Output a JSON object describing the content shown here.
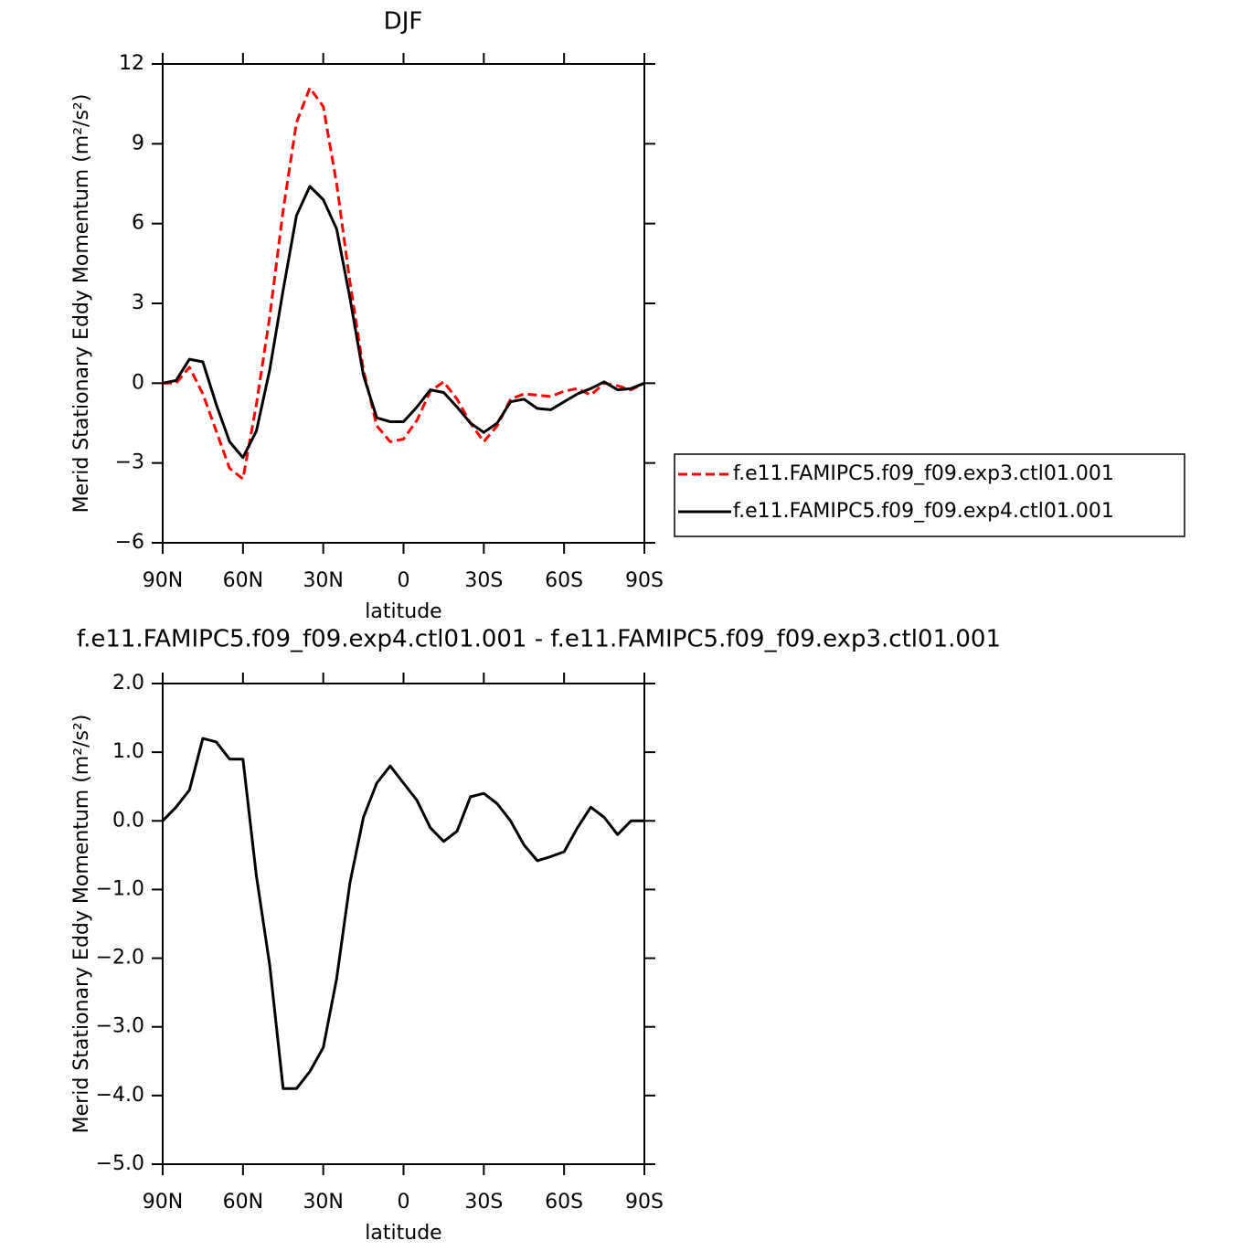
{
  "chart_data": [
    {
      "type": "line",
      "title": "DJF",
      "xlabel": "latitude",
      "ylabel": "Merid Stationary Eddy Momentum (m²/s²)",
      "x": [
        90,
        85,
        80,
        75,
        70,
        65,
        60,
        55,
        50,
        45,
        40,
        35,
        30,
        25,
        20,
        15,
        10,
        5,
        0,
        -5,
        -10,
        -15,
        -20,
        -25,
        -30,
        -35,
        -40,
        -45,
        -50,
        -55,
        -60,
        -65,
        -70,
        -75,
        -80,
        -85,
        -90
      ],
      "xlim": [
        90,
        -90
      ],
      "xticks": [
        {
          "value": 90,
          "label": "90N"
        },
        {
          "value": 60,
          "label": "60N"
        },
        {
          "value": 30,
          "label": "30N"
        },
        0,
        {
          "value": -30,
          "label": "30S"
        },
        {
          "value": -60,
          "label": "60S"
        },
        {
          "value": -90,
          "label": "90S"
        }
      ],
      "ylim": [
        -6,
        12
      ],
      "yticks": [
        {
          "value": -6,
          "label": "−6"
        },
        {
          "value": -3,
          "label": "−3"
        },
        0,
        3,
        6,
        9,
        12
      ],
      "legend": "right",
      "series": [
        {
          "name": "f.e11.FAMIPC5.f09_f09.exp3.ctl01.001",
          "color": "#ff0000",
          "dash": true,
          "values": [
            0,
            0,
            0.6,
            -0.4,
            -1.8,
            -3.2,
            -3.6,
            -0.8,
            2.5,
            6.5,
            9.8,
            11.1,
            10.4,
            7.5,
            3.8,
            0.5,
            -1.6,
            -2.2,
            -2.1,
            -1.4,
            -0.3,
            0.05,
            -0.6,
            -1.5,
            -2.2,
            -1.6,
            -0.6,
            -0.4,
            -0.45,
            -0.5,
            -0.3,
            -0.2,
            -0.45,
            0,
            -0.1,
            -0.25,
            0
          ]
        },
        {
          "name": "f.e11.FAMIPC5.f09_f09.exp4.ctl01.001",
          "color": "#000000",
          "dash": false,
          "values": [
            0,
            0.1,
            0.9,
            0.8,
            -0.8,
            -2.2,
            -2.8,
            -1.8,
            0.5,
            3.5,
            6.3,
            7.4,
            6.9,
            5.8,
            3.2,
            0.3,
            -1.3,
            -1.45,
            -1.45,
            -0.9,
            -0.25,
            -0.35,
            -0.9,
            -1.5,
            -1.85,
            -1.5,
            -0.7,
            -0.6,
            -0.95,
            -1.0,
            -0.7,
            -0.4,
            -0.2,
            0.05,
            -0.25,
            -0.2,
            0
          ]
        }
      ]
    },
    {
      "type": "line",
      "title": "f.e11.FAMIPC5.f09_f09.exp4.ctl01.001 - f.e11.FAMIPC5.f09_f09.exp3.ctl01.001",
      "xlabel": "latitude",
      "ylabel": "Merid Stationary Eddy Momentum (m²/s²)",
      "x": [
        90,
        85,
        80,
        75,
        70,
        65,
        60,
        55,
        50,
        45,
        40,
        35,
        30,
        25,
        20,
        15,
        10,
        5,
        0,
        -5,
        -10,
        -15,
        -20,
        -25,
        -30,
        -35,
        -40,
        -45,
        -50,
        -55,
        -60,
        -65,
        -70,
        -75,
        -80,
        -85,
        -90
      ],
      "xlim": [
        90,
        -90
      ],
      "xticks": [
        {
          "value": 90,
          "label": "90N"
        },
        {
          "value": 60,
          "label": "60N"
        },
        {
          "value": 30,
          "label": "30N"
        },
        0,
        {
          "value": -30,
          "label": "30S"
        },
        {
          "value": -60,
          "label": "60S"
        },
        {
          "value": -90,
          "label": "90S"
        }
      ],
      "ylim": [
        -5,
        2
      ],
      "yticks": [
        {
          "value": -5,
          "label": "−5.0"
        },
        {
          "value": -4,
          "label": "−4.0"
        },
        {
          "value": -3,
          "label": "−3.0"
        },
        {
          "value": -2,
          "label": "−2.0"
        },
        {
          "value": -1,
          "label": "−1.0"
        },
        {
          "value": 0,
          "label": "0.0"
        },
        {
          "value": 1,
          "label": "1.0"
        },
        {
          "value": 2,
          "label": "2.0"
        }
      ],
      "series": [
        {
          "color": "#000000",
          "dash": false,
          "values": [
            0,
            0.2,
            0.45,
            1.2,
            1.15,
            0.9,
            0.9,
            -0.8,
            -2.1,
            -3.9,
            -3.9,
            -3.65,
            -3.3,
            -2.3,
            -0.9,
            0.05,
            0.55,
            0.8,
            0.55,
            0.3,
            -0.1,
            -0.3,
            -0.15,
            0.35,
            0.4,
            0.25,
            0,
            -0.35,
            -0.58,
            -0.52,
            -0.45,
            -0.1,
            0.2,
            0.05,
            -0.2,
            0,
            0
          ]
        }
      ]
    }
  ]
}
